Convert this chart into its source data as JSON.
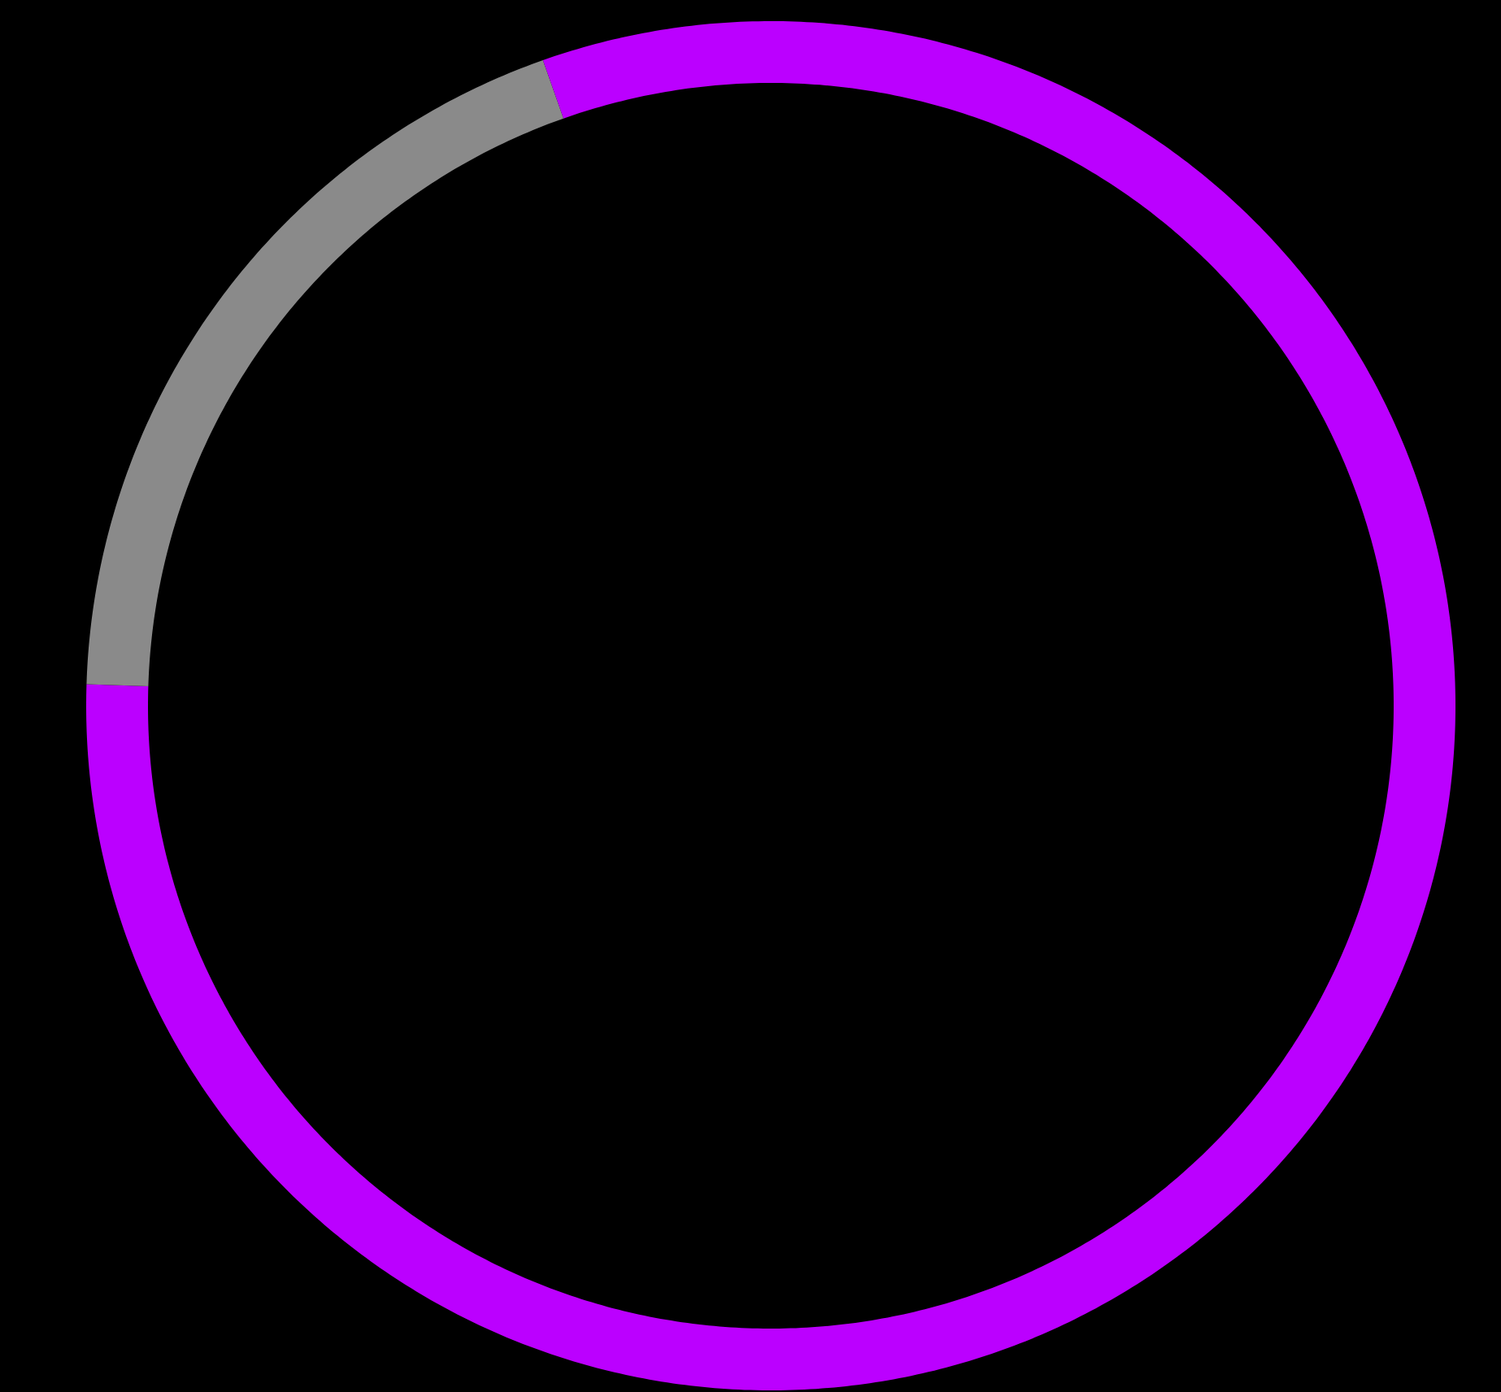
{
  "chart_data": {
    "type": "donut",
    "categories": [
      null,
      null,
      null
    ],
    "values": [
      75.5,
      19.1,
      5.4
    ],
    "colors": [
      "#bb00ff",
      "#8a8a8a",
      "#bb00ff"
    ]
  }
}
